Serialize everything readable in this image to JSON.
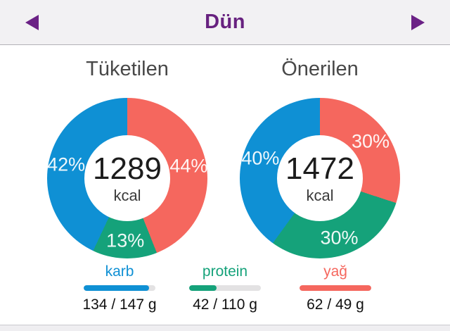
{
  "header": {
    "title": "Dün",
    "prev_icon": "left-arrow",
    "next_icon": "right-arrow"
  },
  "colors": {
    "carb": "#0f90d4",
    "protein": "#15a27a",
    "fat": "#f5675e",
    "accent_purple": "#67217f",
    "bar_track": "#e3e2e3"
  },
  "chart_data": [
    {
      "type": "pie",
      "title": "Tüketilen",
      "center_value": "1289",
      "center_unit": "kcal",
      "slices": [
        {
          "name": "yağ",
          "color": "fat",
          "pct": 44,
          "label": "44%"
        },
        {
          "name": "protein",
          "color": "protein",
          "pct": 13,
          "label": "13%"
        },
        {
          "name": "karb",
          "color": "carb",
          "pct": 42,
          "label": "42%"
        }
      ]
    },
    {
      "type": "pie",
      "title": "Önerilen",
      "center_value": "1472",
      "center_unit": "kcal",
      "slices": [
        {
          "name": "yağ",
          "color": "fat",
          "pct": 30,
          "label": "30%"
        },
        {
          "name": "protein",
          "color": "protein",
          "pct": 30,
          "label": "30%"
        },
        {
          "name": "karb",
          "color": "carb",
          "pct": 40,
          "label": "40%"
        }
      ]
    }
  ],
  "legend": [
    {
      "label": "karb",
      "color": "carb",
      "current": 134,
      "goal": 147,
      "value_text": "134 / 147 g"
    },
    {
      "label": "protein",
      "color": "protein",
      "current": 42,
      "goal": 110,
      "value_text": "42 / 110 g"
    },
    {
      "label": "yağ",
      "color": "fat",
      "current": 62,
      "goal": 49,
      "value_text": "62 / 49 g"
    }
  ]
}
